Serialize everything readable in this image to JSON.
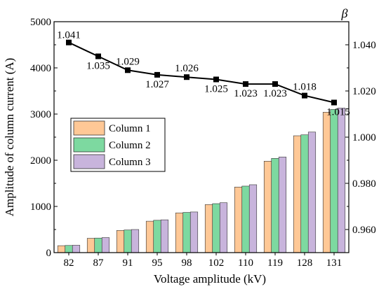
{
  "chart_data": {
    "type": "bar",
    "categories": [
      "82",
      "87",
      "91",
      "95",
      "98",
      "102",
      "110",
      "119",
      "128",
      "131"
    ],
    "xlabel": "Voltage amplitude (kV)",
    "ylabel": "Amplitude of column current (A)",
    "y2label": "β",
    "ylim": [
      0,
      5000
    ],
    "yticks": [
      0,
      1000,
      2000,
      3000,
      4000,
      5000
    ],
    "y2lim": [
      0.95,
      1.05
    ],
    "y2ticks": [
      "0.960",
      "0.980",
      "1.000",
      "1.020",
      "1.040"
    ],
    "legend_position": "middle-left",
    "series": [
      {
        "name": "Column 1",
        "color": "#FFC896",
        "values": [
          150,
          310,
          480,
          680,
          860,
          1040,
          1420,
          1980,
          2530,
          3040
        ]
      },
      {
        "name": "Column 2",
        "color": "#7DD9A0",
        "values": [
          155,
          315,
          490,
          700,
          870,
          1060,
          1440,
          2040,
          2550,
          3100
        ]
      },
      {
        "name": "Column 3",
        "color": "#C8B4DC",
        "values": [
          160,
          325,
          500,
          710,
          880,
          1080,
          1470,
          2070,
          2610,
          3130
        ]
      }
    ],
    "beta": {
      "values": [
        1.041,
        1.035,
        1.029,
        1.027,
        1.026,
        1.025,
        1.023,
        1.023,
        1.018,
        1.015
      ],
      "labels": [
        "1.041",
        "1.035",
        "1.029",
        "1.027",
        "1.026",
        "1.025",
        "1.023",
        "1.023",
        "1.018",
        "1.015"
      ],
      "color": "#000000"
    },
    "grid": false
  }
}
